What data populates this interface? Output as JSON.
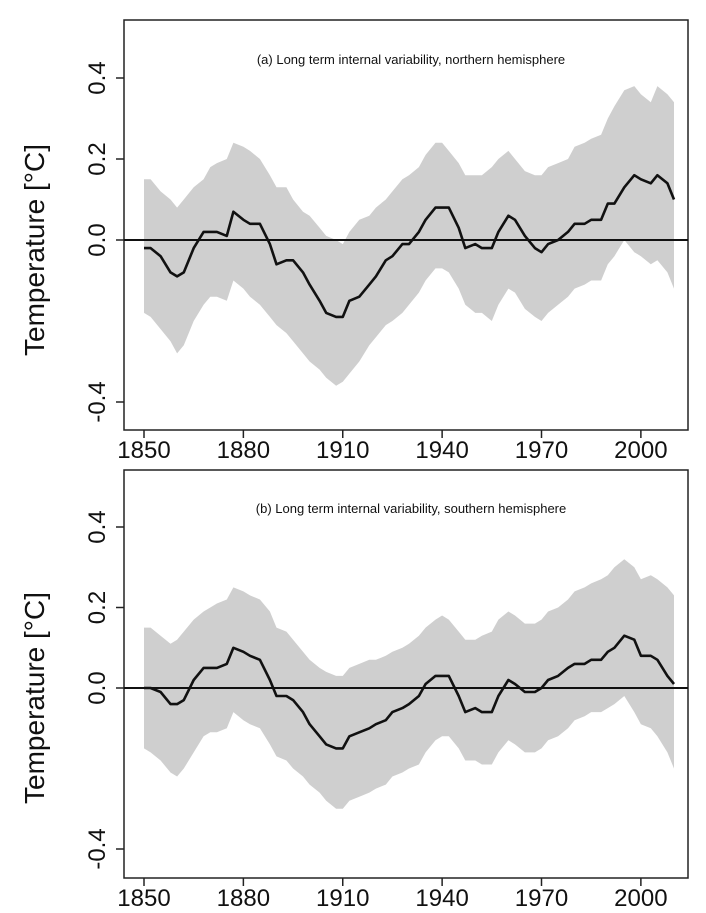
{
  "chart_data": [
    {
      "type": "line",
      "title": "(a) Long term internal variability, northern hemisphere",
      "xlabel": "",
      "ylabel": "Temperature [°C]",
      "xlim": [
        1850,
        2010
      ],
      "ylim": [
        -0.4,
        0.4
      ],
      "x_ticks": [
        "1850",
        "1880",
        "1910",
        "1940",
        "1970",
        "2000"
      ],
      "y_ticks": [
        "-0.4",
        "0.0",
        "0.2",
        "0.4"
      ],
      "grid": false,
      "reference_line": 0.0,
      "series": [
        {
          "type": "line",
          "x": [
            1850,
            1852,
            1855,
            1858,
            1860,
            1862,
            1865,
            1868,
            1870,
            1872,
            1875,
            1877,
            1880,
            1882,
            1885,
            1888,
            1890,
            1893,
            1895,
            1898,
            1900,
            1903,
            1905,
            1908,
            1910,
            1912,
            1915,
            1918,
            1920,
            1923,
            1925,
            1928,
            1930,
            1933,
            1935,
            1938,
            1940,
            1942,
            1945,
            1947,
            1950,
            1952,
            1955,
            1957,
            1960,
            1962,
            1965,
            1968,
            1970,
            1972,
            1975,
            1978,
            1980,
            1983,
            1985,
            1988,
            1990,
            1992,
            1995,
            1998,
            2000,
            2003,
            2005,
            2008,
            2010
          ],
          "values": [
            -0.02,
            -0.02,
            -0.04,
            -0.08,
            -0.09,
            -0.08,
            -0.02,
            0.02,
            0.02,
            0.02,
            0.01,
            0.07,
            0.05,
            0.04,
            0.04,
            -0.01,
            -0.06,
            -0.05,
            -0.05,
            -0.08,
            -0.11,
            -0.15,
            -0.18,
            -0.19,
            -0.19,
            -0.15,
            -0.14,
            -0.11,
            -0.09,
            -0.05,
            -0.04,
            -0.01,
            -0.01,
            0.02,
            0.05,
            0.08,
            0.08,
            0.08,
            0.03,
            -0.02,
            -0.01,
            -0.02,
            -0.02,
            0.02,
            0.06,
            0.05,
            0.01,
            -0.02,
            -0.03,
            -0.01,
            0.0,
            0.02,
            0.04,
            0.04,
            0.05,
            0.05,
            0.09,
            0.09,
            0.13,
            0.16,
            0.15,
            0.14,
            0.16,
            0.14,
            0.1
          ]
        },
        {
          "type": "band",
          "x": [
            1850,
            1852,
            1855,
            1858,
            1860,
            1862,
            1865,
            1868,
            1870,
            1872,
            1875,
            1877,
            1880,
            1882,
            1885,
            1888,
            1890,
            1893,
            1895,
            1898,
            1900,
            1903,
            1905,
            1908,
            1910,
            1912,
            1915,
            1918,
            1920,
            1923,
            1925,
            1928,
            1930,
            1933,
            1935,
            1938,
            1940,
            1942,
            1945,
            1947,
            1950,
            1952,
            1955,
            1957,
            1960,
            1962,
            1965,
            1968,
            1970,
            1972,
            1975,
            1978,
            1980,
            1983,
            1985,
            1988,
            1990,
            1992,
            1995,
            1998,
            2000,
            2003,
            2005,
            2008,
            2010
          ],
          "upper": [
            0.15,
            0.15,
            0.12,
            0.1,
            0.08,
            0.1,
            0.13,
            0.15,
            0.18,
            0.19,
            0.2,
            0.24,
            0.23,
            0.22,
            0.2,
            0.16,
            0.13,
            0.13,
            0.1,
            0.07,
            0.06,
            0.03,
            0.01,
            0.0,
            -0.01,
            0.02,
            0.05,
            0.06,
            0.08,
            0.1,
            0.12,
            0.15,
            0.16,
            0.18,
            0.21,
            0.24,
            0.24,
            0.22,
            0.19,
            0.16,
            0.16,
            0.16,
            0.18,
            0.2,
            0.22,
            0.2,
            0.17,
            0.16,
            0.16,
            0.18,
            0.19,
            0.2,
            0.23,
            0.24,
            0.25,
            0.26,
            0.3,
            0.33,
            0.37,
            0.38,
            0.36,
            0.34,
            0.38,
            0.36,
            0.34
          ],
          "lower": [
            -0.18,
            -0.19,
            -0.22,
            -0.25,
            -0.28,
            -0.26,
            -0.2,
            -0.16,
            -0.14,
            -0.14,
            -0.15,
            -0.1,
            -0.12,
            -0.14,
            -0.16,
            -0.19,
            -0.21,
            -0.23,
            -0.25,
            -0.28,
            -0.3,
            -0.32,
            -0.34,
            -0.36,
            -0.35,
            -0.33,
            -0.3,
            -0.26,
            -0.24,
            -0.21,
            -0.2,
            -0.18,
            -0.16,
            -0.13,
            -0.1,
            -0.07,
            -0.07,
            -0.08,
            -0.12,
            -0.16,
            -0.18,
            -0.18,
            -0.2,
            -0.16,
            -0.12,
            -0.13,
            -0.17,
            -0.19,
            -0.2,
            -0.18,
            -0.16,
            -0.14,
            -0.12,
            -0.11,
            -0.1,
            -0.1,
            -0.06,
            -0.04,
            0.0,
            -0.03,
            -0.04,
            -0.06,
            -0.05,
            -0.08,
            -0.12
          ]
        }
      ]
    },
    {
      "type": "line",
      "title": "(b) Long term internal variability, southern hemisphere",
      "xlabel": "",
      "ylabel": "Temperature [°C]",
      "xlim": [
        1850,
        2010
      ],
      "ylim": [
        -0.4,
        0.4
      ],
      "x_ticks": [
        "1850",
        "1880",
        "1910",
        "1940",
        "1970",
        "2000"
      ],
      "y_ticks": [
        "-0.4",
        "0.0",
        "0.2",
        "0.4"
      ],
      "grid": false,
      "reference_line": 0.0,
      "series": [
        {
          "type": "line",
          "x": [
            1850,
            1852,
            1855,
            1858,
            1860,
            1862,
            1865,
            1868,
            1870,
            1872,
            1875,
            1877,
            1880,
            1882,
            1885,
            1888,
            1890,
            1893,
            1895,
            1898,
            1900,
            1903,
            1905,
            1908,
            1910,
            1912,
            1915,
            1918,
            1920,
            1923,
            1925,
            1928,
            1930,
            1933,
            1935,
            1938,
            1940,
            1942,
            1945,
            1947,
            1950,
            1952,
            1955,
            1957,
            1960,
            1962,
            1965,
            1968,
            1970,
            1972,
            1975,
            1978,
            1980,
            1983,
            1985,
            1988,
            1990,
            1992,
            1995,
            1998,
            2000,
            2003,
            2005,
            2008,
            2010
          ],
          "values": [
            0.0,
            0.0,
            -0.01,
            -0.04,
            -0.04,
            -0.03,
            0.02,
            0.05,
            0.05,
            0.05,
            0.06,
            0.1,
            0.09,
            0.08,
            0.07,
            0.02,
            -0.02,
            -0.02,
            -0.03,
            -0.06,
            -0.09,
            -0.12,
            -0.14,
            -0.15,
            -0.15,
            -0.12,
            -0.11,
            -0.1,
            -0.09,
            -0.08,
            -0.06,
            -0.05,
            -0.04,
            -0.02,
            0.01,
            0.03,
            0.03,
            0.03,
            -0.02,
            -0.06,
            -0.05,
            -0.06,
            -0.06,
            -0.02,
            0.02,
            0.01,
            -0.01,
            -0.01,
            0.0,
            0.02,
            0.03,
            0.05,
            0.06,
            0.06,
            0.07,
            0.07,
            0.09,
            0.1,
            0.13,
            0.12,
            0.08,
            0.08,
            0.07,
            0.03,
            0.01
          ]
        },
        {
          "type": "band",
          "x": [
            1850,
            1852,
            1855,
            1858,
            1860,
            1862,
            1865,
            1868,
            1870,
            1872,
            1875,
            1877,
            1880,
            1882,
            1885,
            1888,
            1890,
            1893,
            1895,
            1898,
            1900,
            1903,
            1905,
            1908,
            1910,
            1912,
            1915,
            1918,
            1920,
            1923,
            1925,
            1928,
            1930,
            1933,
            1935,
            1938,
            1940,
            1942,
            1945,
            1947,
            1950,
            1952,
            1955,
            1957,
            1960,
            1962,
            1965,
            1968,
            1970,
            1972,
            1975,
            1978,
            1980,
            1983,
            1985,
            1988,
            1990,
            1992,
            1995,
            1998,
            2000,
            2003,
            2005,
            2008,
            2010
          ],
          "upper": [
            0.15,
            0.15,
            0.13,
            0.11,
            0.12,
            0.14,
            0.17,
            0.19,
            0.2,
            0.21,
            0.22,
            0.25,
            0.24,
            0.23,
            0.22,
            0.19,
            0.15,
            0.14,
            0.12,
            0.09,
            0.07,
            0.05,
            0.04,
            0.03,
            0.03,
            0.05,
            0.06,
            0.07,
            0.07,
            0.08,
            0.09,
            0.1,
            0.11,
            0.13,
            0.15,
            0.17,
            0.18,
            0.17,
            0.14,
            0.12,
            0.12,
            0.13,
            0.14,
            0.17,
            0.19,
            0.18,
            0.16,
            0.16,
            0.17,
            0.19,
            0.2,
            0.22,
            0.24,
            0.25,
            0.26,
            0.27,
            0.28,
            0.3,
            0.32,
            0.3,
            0.27,
            0.28,
            0.27,
            0.25,
            0.23
          ],
          "lower": [
            -0.15,
            -0.16,
            -0.18,
            -0.21,
            -0.22,
            -0.2,
            -0.16,
            -0.12,
            -0.11,
            -0.11,
            -0.1,
            -0.06,
            -0.08,
            -0.09,
            -0.1,
            -0.14,
            -0.17,
            -0.18,
            -0.2,
            -0.22,
            -0.24,
            -0.26,
            -0.28,
            -0.3,
            -0.3,
            -0.28,
            -0.27,
            -0.26,
            -0.25,
            -0.24,
            -0.22,
            -0.21,
            -0.2,
            -0.19,
            -0.16,
            -0.13,
            -0.12,
            -0.12,
            -0.15,
            -0.18,
            -0.18,
            -0.19,
            -0.19,
            -0.16,
            -0.13,
            -0.14,
            -0.16,
            -0.16,
            -0.15,
            -0.13,
            -0.12,
            -0.1,
            -0.08,
            -0.07,
            -0.06,
            -0.06,
            -0.05,
            -0.04,
            -0.02,
            -0.06,
            -0.09,
            -0.1,
            -0.12,
            -0.16,
            -0.2
          ]
        }
      ]
    }
  ]
}
